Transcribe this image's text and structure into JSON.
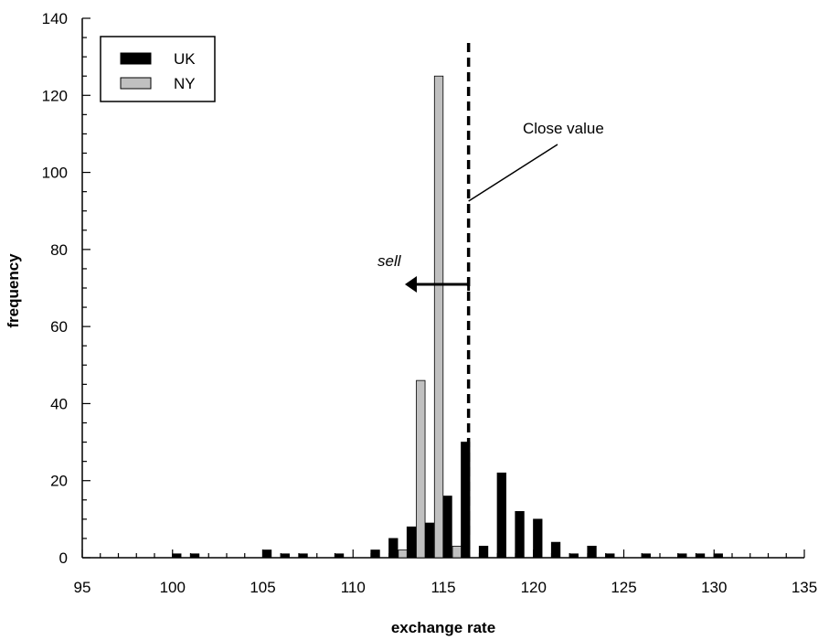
{
  "chart_data": {
    "type": "bar",
    "xlabel": "exchange rate",
    "ylabel": "frequency",
    "xlim": [
      95,
      135
    ],
    "ylim": [
      0,
      140
    ],
    "x_ticks": [
      95,
      100,
      105,
      110,
      115,
      120,
      125,
      130,
      135
    ],
    "y_ticks": [
      0,
      20,
      40,
      60,
      80,
      100,
      120,
      140
    ],
    "grid": false,
    "legend_position": "top-left",
    "series": [
      {
        "name": "UK",
        "color": "#000000",
        "points": [
          {
            "x": 100,
            "y": 1
          },
          {
            "x": 101,
            "y": 1
          },
          {
            "x": 105,
            "y": 2
          },
          {
            "x": 106,
            "y": 1
          },
          {
            "x": 107,
            "y": 1
          },
          {
            "x": 109,
            "y": 1
          },
          {
            "x": 111,
            "y": 2
          },
          {
            "x": 112,
            "y": 5
          },
          {
            "x": 113,
            "y": 8
          },
          {
            "x": 114,
            "y": 9
          },
          {
            "x": 115,
            "y": 16
          },
          {
            "x": 116,
            "y": 30
          },
          {
            "x": 117,
            "y": 3
          },
          {
            "x": 118,
            "y": 22
          },
          {
            "x": 119,
            "y": 12
          },
          {
            "x": 120,
            "y": 10
          },
          {
            "x": 121,
            "y": 4
          },
          {
            "x": 122,
            "y": 1
          },
          {
            "x": 123,
            "y": 3
          },
          {
            "x": 124,
            "y": 1
          },
          {
            "x": 126,
            "y": 1
          },
          {
            "x": 128,
            "y": 1
          },
          {
            "x": 129,
            "y": 1
          },
          {
            "x": 130,
            "y": 1
          }
        ]
      },
      {
        "name": "NY",
        "color": "#c0c0c0",
        "points": [
          {
            "x": 113,
            "y": 2
          },
          {
            "x": 114,
            "y": 46
          },
          {
            "x": 115,
            "y": 125
          },
          {
            "x": 116,
            "y": 3
          }
        ]
      }
    ],
    "close_value_x": 116.4,
    "annotations": {
      "close_label": "Close value",
      "sell_label": "sell"
    }
  }
}
